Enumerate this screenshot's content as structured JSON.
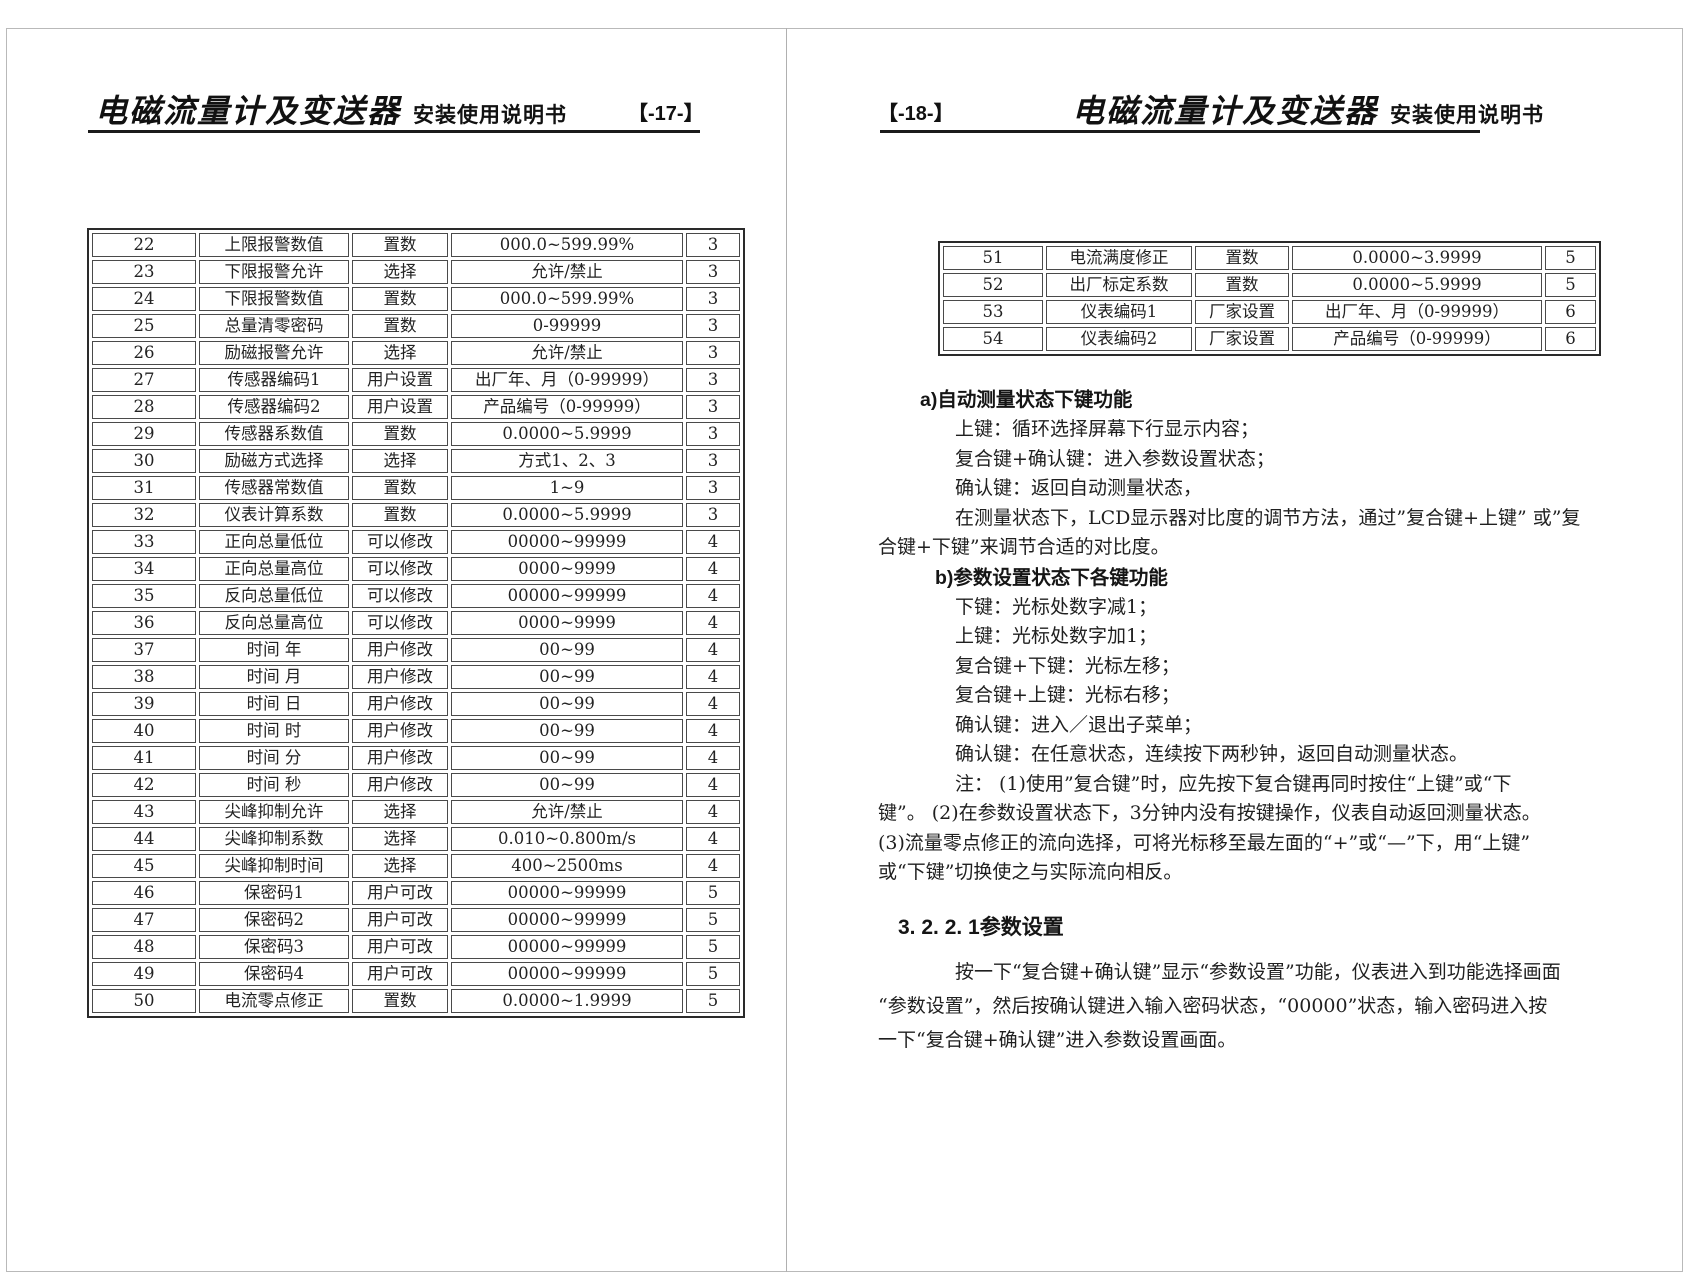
{
  "left_page": {
    "header": {
      "title": "电磁流量计及变送器",
      "subtitle": "安装使用说明书",
      "page_label": "【-17-】"
    },
    "table_rows": [
      [
        "22",
        "上限报警数值",
        "置数",
        "000.0~599.99%",
        "3"
      ],
      [
        "23",
        "下限报警允许",
        "选择",
        "允许/禁止",
        "3"
      ],
      [
        "24",
        "下限报警数值",
        "置数",
        "000.0~599.99%",
        "3"
      ],
      [
        "25",
        "总量清零密码",
        "置数",
        "0-99999",
        "3"
      ],
      [
        "26",
        "励磁报警允许",
        "选择",
        "允许/禁止",
        "3"
      ],
      [
        "27",
        "传感器编码1",
        "用户设置",
        "出厂年、月（0-99999）",
        "3"
      ],
      [
        "28",
        "传感器编码2",
        "用户设置",
        "产品编号（0-99999）",
        "3"
      ],
      [
        "29",
        "传感器系数值",
        "置数",
        "0.0000~5.9999",
        "3"
      ],
      [
        "30",
        "励磁方式选择",
        "选择",
        "方式1、2、3",
        "3"
      ],
      [
        "31",
        "传感器常数值",
        "置数",
        "1~9",
        "3"
      ],
      [
        "32",
        "仪表计算系数",
        "置数",
        "0.0000~5.9999",
        "3"
      ],
      [
        "33",
        "正向总量低位",
        "可以修改",
        "00000~99999",
        "4"
      ],
      [
        "34",
        "正向总量高位",
        "可以修改",
        "0000~9999",
        "4"
      ],
      [
        "35",
        "反向总量低位",
        "可以修改",
        "00000~99999",
        "4"
      ],
      [
        "36",
        "反向总量高位",
        "可以修改",
        "0000~9999",
        "4"
      ],
      [
        "37",
        "时间 年",
        "用户修改",
        "00~99",
        "4"
      ],
      [
        "38",
        "时间 月",
        "用户修改",
        "00~99",
        "4"
      ],
      [
        "39",
        "时间 日",
        "用户修改",
        "00~99",
        "4"
      ],
      [
        "40",
        "时间 时",
        "用户修改",
        "00~99",
        "4"
      ],
      [
        "41",
        "时间 分",
        "用户修改",
        "00~99",
        "4"
      ],
      [
        "42",
        "时间 秒",
        "用户修改",
        "00~99",
        "4"
      ],
      [
        "43",
        "尖峰抑制允许",
        "选择",
        "允许/禁止",
        "4"
      ],
      [
        "44",
        "尖峰抑制系数",
        "选择",
        "0.010~0.800m/s",
        "4"
      ],
      [
        "45",
        "尖峰抑制时间",
        "选择",
        "400~2500ms",
        "4"
      ],
      [
        "46",
        "保密码1",
        "用户可改",
        "00000~99999",
        "5"
      ],
      [
        "47",
        "保密码2",
        "用户可改",
        "00000~99999",
        "5"
      ],
      [
        "48",
        "保密码3",
        "用户可改",
        "00000~99999",
        "5"
      ],
      [
        "49",
        "保密码4",
        "用户可改",
        "00000~99999",
        "5"
      ],
      [
        "50",
        "电流零点修正",
        "置数",
        "0.0000~1.9999",
        "5"
      ]
    ]
  },
  "right_page": {
    "header": {
      "page_label": "【-18-】",
      "title": "电磁流量计及变送器",
      "subtitle": "安装使用说明书"
    },
    "table_rows": [
      [
        "51",
        "电流满度修正",
        "置数",
        "0.0000~3.9999",
        "5"
      ],
      [
        "52",
        "出厂标定系数",
        "置数",
        "0.0000~5.9999",
        "5"
      ],
      [
        "53",
        "仪表编码1",
        "厂家设置",
        "出厂年、月（0-99999）",
        "6"
      ],
      [
        "54",
        "仪表编码2",
        "厂家设置",
        "产品编号（0-99999）",
        "6"
      ]
    ],
    "body": {
      "section_a": {
        "heading": "a)自动测量状态下键功能",
        "lines": [
          {
            "text": "上键：循环选择屏幕下行显示内容；",
            "indent": true
          },
          {
            "text": "复合键+确认键：进入参数设置状态；",
            "indent": true
          },
          {
            "text": "确认键：返回自动测量状态，",
            "indent": true
          },
          {
            "text": "在测量状态下，LCD显示器对比度的调节方法，通过”复合键+上键” 或”复",
            "indent": true
          },
          {
            "text": "合键+下键”来调节合适的对比度。",
            "indent": false
          }
        ]
      },
      "section_b": {
        "heading": "b)参数设置状态下各键功能",
        "lines": [
          {
            "text": "下键：光标处数字减1；",
            "indent": true
          },
          {
            "text": "上键：光标处数字加1；",
            "indent": true
          },
          {
            "text": "复合键+下键：光标左移；",
            "indent": true
          },
          {
            "text": "复合键+上键：光标右移；",
            "indent": true
          },
          {
            "text": "确认键：进入／退出子菜单；",
            "indent": true
          },
          {
            "text": "确认键：在任意状态，连续按下两秒钟，返回自动测量状态。",
            "indent": true
          },
          {
            "text": "注： (1)使用”复合键”时，应先按下复合键再同时按住“上键”或“下",
            "indent": true
          },
          {
            "text": "键”。  (2)在参数设置状态下，3分钟内没有按键操作，仪表自动返回测量状态。",
            "indent": false
          },
          {
            "text": "(3)流量零点修正的流向选择，可将光标移至最左面的“+”或“—”下，用“上键”",
            "indent": false
          },
          {
            "text": "或“下键”切换使之与实际流向相反。",
            "indent": false
          }
        ]
      },
      "section_3221": {
        "heading": "3. 2. 2. 1参数设置",
        "lines": [
          {
            "text": "按一下“复合键+确认键”显示“参数设置”功能，仪表进入到功能选择画面",
            "indent": true
          },
          {
            "text": "“参数设置”，然后按确认键进入输入密码状态，“00000”状态，输入密码进入按",
            "indent": false
          },
          {
            "text": "一下“复合键+确认键”进入参数设置画面。",
            "indent": false
          }
        ]
      }
    }
  }
}
